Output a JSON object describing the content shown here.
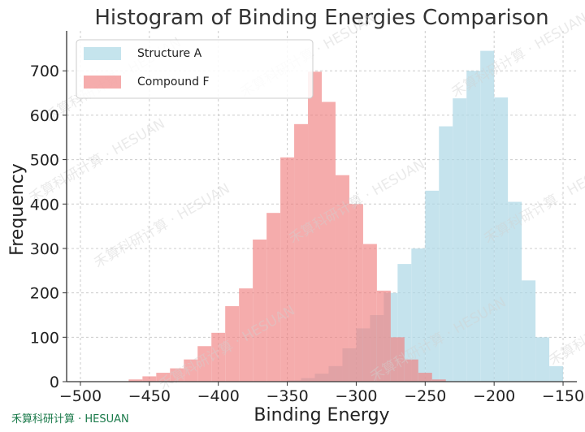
{
  "chart_data": {
    "type": "bar",
    "title": "Histogram of Binding Energies Comparison",
    "xlabel": "Binding Energy",
    "ylabel": "Frequency",
    "xlim": [
      -510,
      -140
    ],
    "ylim": [
      0,
      790
    ],
    "xticks": [
      -500,
      -450,
      -400,
      -350,
      -300,
      -250,
      -200,
      -150
    ],
    "yticks": [
      0,
      100,
      200,
      300,
      400,
      500,
      600,
      700
    ],
    "grid": true,
    "legend_position": "top-left",
    "series": [
      {
        "name": "Structure A",
        "color": "#add8e6",
        "bin_width": 10,
        "bins": [
          {
            "x0": -350,
            "count": 3
          },
          {
            "x0": -340,
            "count": 8
          },
          {
            "x0": -330,
            "count": 18
          },
          {
            "x0": -320,
            "count": 35
          },
          {
            "x0": -310,
            "count": 75
          },
          {
            "x0": -300,
            "count": 120
          },
          {
            "x0": -290,
            "count": 150
          },
          {
            "x0": -280,
            "count": 200
          },
          {
            "x0": -270,
            "count": 265
          },
          {
            "x0": -260,
            "count": 300
          },
          {
            "x0": -250,
            "count": 430
          },
          {
            "x0": -240,
            "count": 575
          },
          {
            "x0": -230,
            "count": 638
          },
          {
            "x0": -220,
            "count": 700
          },
          {
            "x0": -210,
            "count": 745
          },
          {
            "x0": -200,
            "count": 640
          },
          {
            "x0": -190,
            "count": 405
          },
          {
            "x0": -180,
            "count": 228
          },
          {
            "x0": -170,
            "count": 100
          },
          {
            "x0": -160,
            "count": 35
          }
        ]
      },
      {
        "name": "Compound F",
        "color": "#f08080",
        "bin_width": 10,
        "bins": [
          {
            "x0": -465,
            "count": 5
          },
          {
            "x0": -455,
            "count": 12
          },
          {
            "x0": -445,
            "count": 20
          },
          {
            "x0": -435,
            "count": 30
          },
          {
            "x0": -425,
            "count": 50
          },
          {
            "x0": -415,
            "count": 80
          },
          {
            "x0": -405,
            "count": 110
          },
          {
            "x0": -395,
            "count": 170
          },
          {
            "x0": -385,
            "count": 210
          },
          {
            "x0": -375,
            "count": 320
          },
          {
            "x0": -365,
            "count": 380
          },
          {
            "x0": -355,
            "count": 505
          },
          {
            "x0": -345,
            "count": 580
          },
          {
            "x0": -335,
            "count": 698
          },
          {
            "x0": -325,
            "count": 630
          },
          {
            "x0": -315,
            "count": 465
          },
          {
            "x0": -305,
            "count": 400
          },
          {
            "x0": -295,
            "count": 310
          },
          {
            "x0": -285,
            "count": 205
          },
          {
            "x0": -275,
            "count": 100
          },
          {
            "x0": -265,
            "count": 50
          },
          {
            "x0": -255,
            "count": 20
          },
          {
            "x0": -245,
            "count": 5
          }
        ]
      }
    ]
  },
  "watermark": {
    "corner_text": "禾算科研计算 · HESUAN",
    "overlay_text": "禾算科研计算 · HESUAN"
  }
}
